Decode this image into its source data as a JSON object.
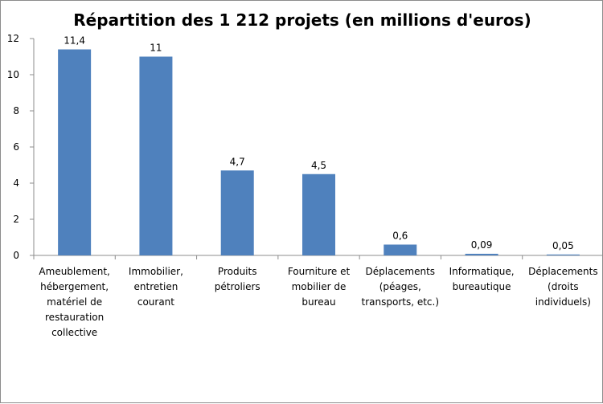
{
  "chart_data": {
    "type": "bar",
    "title": "Répartition des 1 212 projets (en millions d'euros)",
    "xlabel": "",
    "ylabel": "",
    "ylim": [
      0,
      12
    ],
    "yticks": [
      0,
      2,
      4,
      6,
      8,
      10,
      12
    ],
    "grid": false,
    "legend": "none",
    "bar_color": "#4f81bd",
    "categories": [
      [
        "Ameublement,",
        "hébergement,",
        "matériel de",
        "restauration",
        "collective"
      ],
      [
        "Immobilier,",
        "entretien",
        "courant"
      ],
      [
        "Produits",
        "pétroliers"
      ],
      [
        "Fourniture et",
        "mobilier de",
        "bureau"
      ],
      [
        "Déplacements",
        "(péages,",
        "transports, etc.)"
      ],
      [
        "Informatique,",
        "bureautique"
      ],
      [
        "Déplacements",
        "(droits",
        "individuels)"
      ]
    ],
    "values": [
      11.4,
      11,
      4.7,
      4.5,
      0.6,
      0.09,
      0.05
    ],
    "data_labels": [
      "11,4",
      "11",
      "4,7",
      "4,5",
      "0,6",
      "0,09",
      "0,05"
    ]
  }
}
